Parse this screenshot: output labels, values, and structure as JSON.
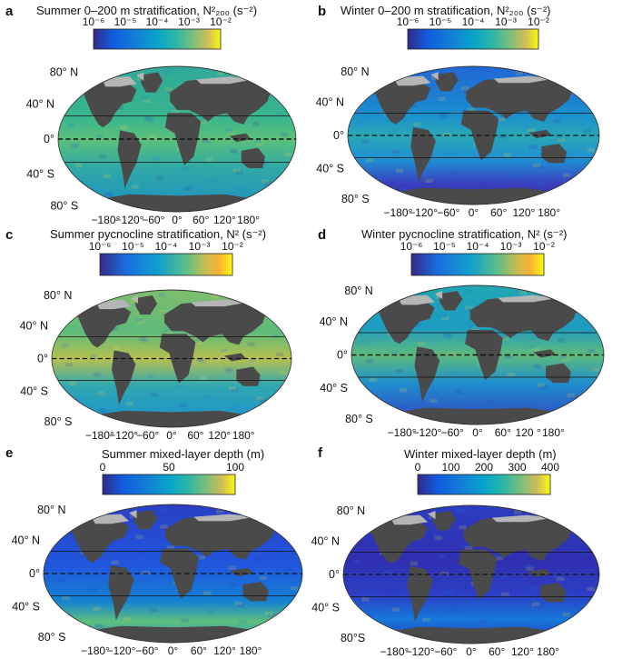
{
  "colors": {
    "land": "#4a4a4a",
    "ice": "#b5b5b5",
    "outline": "#222222"
  },
  "chart_data": [
    {
      "type": "heatmap",
      "panel": "a",
      "title": "Summer 0–200 m stratification, N²₂₀₀ (s⁻²)",
      "colorbar": {
        "scale": "log",
        "ticks": [
          "10⁻⁶",
          "10⁻⁵",
          "10⁻⁴",
          "10⁻³",
          "10⁻²"
        ]
      },
      "lat_labels": [
        "80° N",
        "40° N",
        "0°",
        "40° S",
        "80° S"
      ],
      "lon_labels": [
        "−180°",
        "−120°",
        "−60°",
        "0°",
        "60°",
        "120°",
        "180°"
      ]
    },
    {
      "type": "heatmap",
      "panel": "b",
      "title": "Winter 0–200 m stratification, N²₂₀₀ (s⁻²)",
      "colorbar": {
        "scale": "log",
        "ticks": [
          "10⁻⁶",
          "10⁻⁵",
          "10⁻⁴",
          "10⁻³",
          "10⁻²"
        ]
      },
      "lat_labels": [
        "80° N",
        "40° N",
        "0°",
        "40° S",
        "80° S"
      ],
      "lon_labels": [
        "−180°",
        "−120°",
        "−60°",
        "0°",
        "60°",
        "120°",
        "180°"
      ]
    },
    {
      "type": "heatmap",
      "panel": "c",
      "title": "Summer pycnocline stratification, N² (s⁻²)",
      "colorbar": {
        "scale": "log",
        "ticks": [
          "10⁻⁶",
          "10⁻⁵",
          "10⁻⁴",
          "10⁻³",
          "10⁻²"
        ]
      },
      "lat_labels": [
        "80° N",
        "40° N",
        "0°",
        "40° S",
        "80° S"
      ],
      "lon_labels": [
        "−180°",
        "−120°",
        "−60°",
        "0°",
        "60°",
        "120°",
        "180°"
      ]
    },
    {
      "type": "heatmap",
      "panel": "d",
      "title": "Winter pycnocline stratification, N² (s⁻²)",
      "colorbar": {
        "scale": "log",
        "ticks": [
          "10⁻⁶",
          "10⁻⁵",
          "10⁻⁴",
          "10⁻³",
          "10⁻²"
        ]
      },
      "lat_labels": [
        "80° N",
        "40° N",
        "0°",
        "40° S",
        "80° S"
      ],
      "lon_labels": [
        "−180°",
        "−120°",
        "−60°",
        "0°",
        "60°",
        "120 °",
        "180°"
      ]
    },
    {
      "type": "heatmap",
      "panel": "e",
      "title": "Summer mixed-layer depth (m)",
      "colorbar": {
        "scale": "linear",
        "ticks": [
          "0",
          "50",
          "100"
        ]
      },
      "lat_labels": [
        "80° N",
        "40° N",
        "0°",
        "40° S",
        "80° S"
      ],
      "lon_labels": [
        "−180°",
        "−120°",
        "−60°",
        "0°",
        "60°",
        "120°",
        "180°"
      ]
    },
    {
      "type": "heatmap",
      "panel": "f",
      "title": "Winter mixed-layer depth (m)",
      "colorbar": {
        "scale": "linear",
        "ticks": [
          "0",
          "100",
          "200",
          "300",
          "400"
        ]
      },
      "lat_labels": [
        "80° N",
        "40° N",
        "0°",
        "40° S",
        "80°S"
      ],
      "lon_labels": [
        "−180°",
        "−120°",
        "−60°",
        "0°",
        "60°",
        "120°",
        "180°"
      ]
    }
  ]
}
